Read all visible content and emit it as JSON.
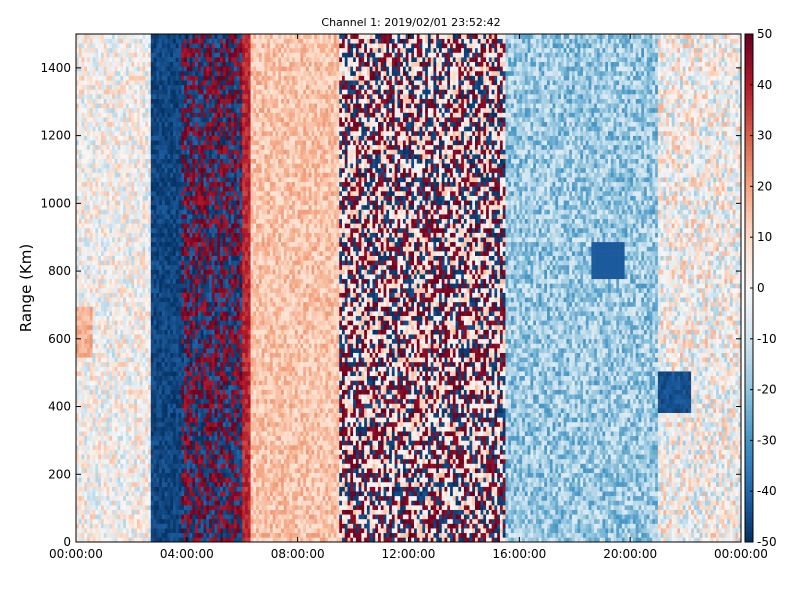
{
  "chart_data": {
    "type": "heatmap",
    "title": "Channel 1: 2019/02/01 23:52:42",
    "xlabel": "",
    "ylabel": "Range (Km)",
    "xlim": [
      "00:00:00",
      "00:00:00"
    ],
    "ylim": [
      0,
      1500
    ],
    "x_ticks": [
      "00:00:00",
      "04:00:00",
      "08:00:00",
      "12:00:00",
      "16:00:00",
      "20:00:00",
      "00:00:00"
    ],
    "y_ticks": [
      0,
      200,
      400,
      600,
      800,
      1000,
      1200,
      1400
    ],
    "colorbar": {
      "colormap": "RdBu_r",
      "range": [
        -50,
        50
      ],
      "ticks": [
        -50,
        -40,
        -30,
        -20,
        -10,
        0,
        10,
        20,
        30,
        40,
        50
      ]
    },
    "grid": false,
    "features": [
      {
        "x_start_hour": 0.0,
        "x_end_hour": 2.7,
        "description_value": "mixed light blue / light red values, mostly -15 to 15"
      },
      {
        "x_start_hour": 2.7,
        "x_end_hour": 3.8,
        "description_value": "strong negative values near -50"
      },
      {
        "x_start_hour": 3.8,
        "x_end_hour": 6.0,
        "description_value": "noisy alternating -50 / +50"
      },
      {
        "x_start_hour": 6.0,
        "x_end_hour": 9.5,
        "description_value": "light positive values 5 to 25"
      },
      {
        "x_start_hour": 9.5,
        "x_end_hour": 15.5,
        "description_value": "noisy alternating -50 / +50 over light background"
      },
      {
        "x_start_hour": 15.5,
        "x_end_hour": 21.0,
        "description_value": "mostly negative values -10 to -35"
      },
      {
        "x_start_hour": 21.0,
        "x_end_hour": 24.0,
        "description_value": "light mixed values -20 to 20"
      }
    ]
  }
}
